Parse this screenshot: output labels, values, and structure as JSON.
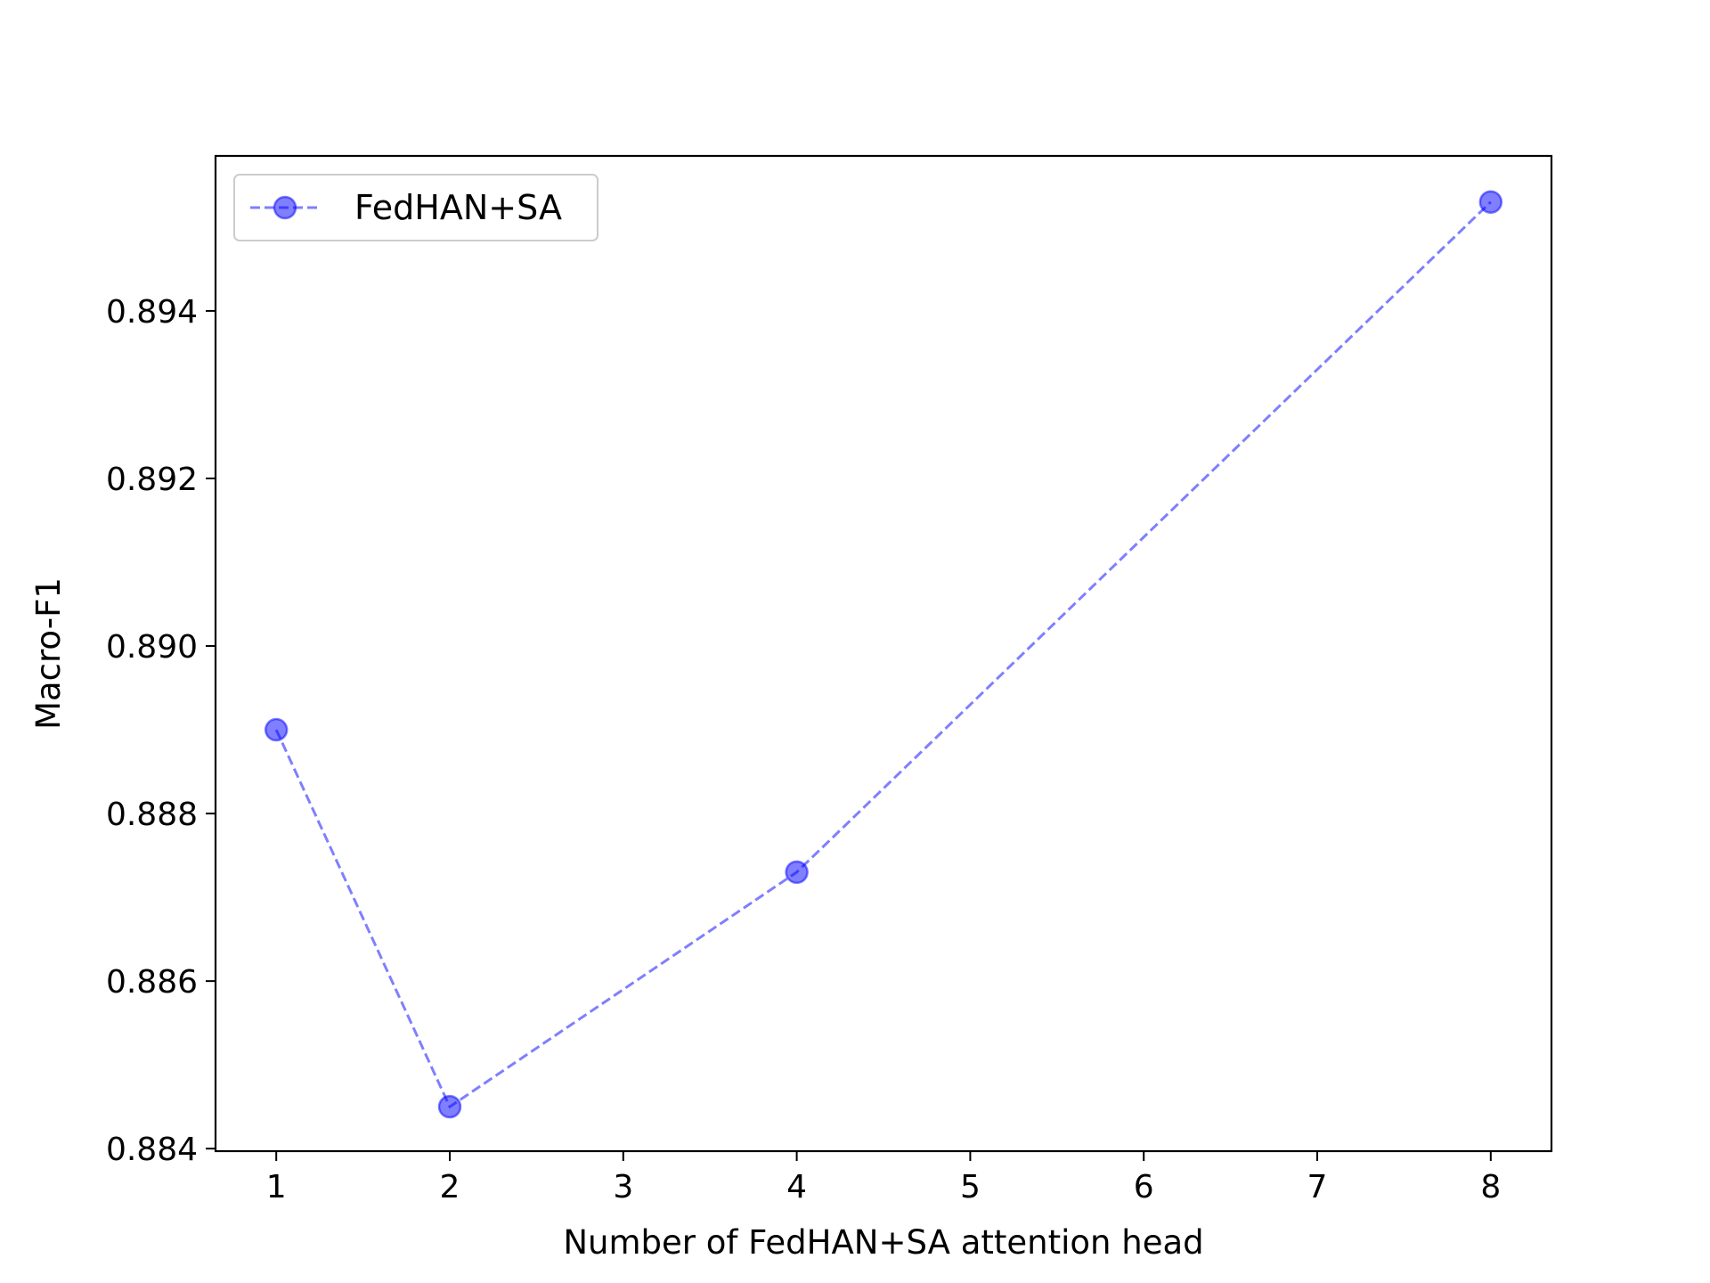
{
  "chart_data": {
    "type": "line",
    "title": "",
    "xlabel": "Number of FedHAN+SA attention head",
    "ylabel": "Macro-F1",
    "xlim": [
      0.65,
      8.35
    ],
    "ylim": [
      0.88397,
      0.89585
    ],
    "x_ticks": [
      1,
      2,
      3,
      4,
      5,
      6,
      7,
      8
    ],
    "y_ticks": [
      0.884,
      0.886,
      0.888,
      0.89,
      0.892,
      0.894
    ],
    "y_tick_labels": [
      "0.884",
      "0.886",
      "0.888",
      "0.890",
      "0.892",
      "0.894"
    ],
    "grid": false,
    "legend_position": "upper-left",
    "series": [
      {
        "name": "FedHAN+SA",
        "color": "#0000ff",
        "linestyle": "dashed",
        "marker": "circle",
        "x": [
          1,
          2,
          4,
          8
        ],
        "y": [
          0.889,
          0.8845,
          0.8873,
          0.8953
        ]
      }
    ]
  }
}
